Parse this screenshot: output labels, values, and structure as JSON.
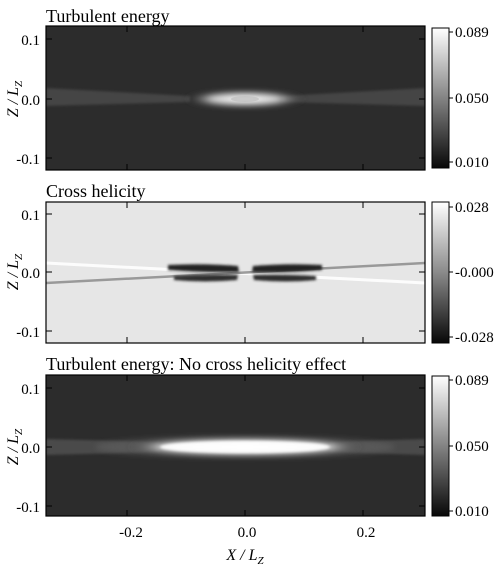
{
  "chart_data": [
    {
      "type": "heatmap",
      "title": "Turbulent energy",
      "ylabel_main": "Z / L",
      "ylabel_sub": "Z",
      "xlabel": "",
      "xlim": [
        -0.3,
        0.3
      ],
      "ylim": [
        -0.12,
        0.12
      ],
      "yticks": [
        0.1,
        0.0,
        -0.1
      ],
      "ytick_labels": [
        "0.1",
        "0.0",
        "-0.1"
      ],
      "colorscale": "grayscale (dark = low, white = high)",
      "colorbar": {
        "min": 0.01,
        "max": 0.089,
        "ticks": [
          0.089,
          0.05,
          0.01
        ],
        "tick_labels": [
          "0.089",
          "0.050",
          "0.010"
        ]
      },
      "features": [
        {
          "shape": "bright elongated core",
          "x_center": 0.0,
          "y_center": 0.0,
          "half_width_x": 0.1,
          "half_width_y": 0.015,
          "value": 0.089
        },
        {
          "shape": "faint thin wings",
          "x_range": [
            -0.3,
            0.3
          ],
          "y_center": 0.0,
          "value": 0.02
        }
      ]
    },
    {
      "type": "heatmap",
      "title": "Cross helicity",
      "ylabel_main": "Z / L",
      "ylabel_sub": "Z",
      "xlabel": "",
      "xlim": [
        -0.3,
        0.3
      ],
      "ylim": [
        -0.12,
        0.12
      ],
      "yticks": [
        0.1,
        0.0,
        -0.1
      ],
      "ytick_labels": [
        "0.1",
        "0.0",
        "-0.1"
      ],
      "colorscale": "grayscale (dark = negative, light = positive)",
      "colorbar": {
        "min": -0.028,
        "max": 0.028,
        "ticks": [
          0.028,
          0.0,
          -0.028
        ],
        "tick_labels": [
          "0.028",
          "-0.000",
          "-0.028"
        ]
      },
      "features": [
        {
          "shape": "antisymmetric dark lobes",
          "x_range": [
            -0.1,
            0.1
          ],
          "y_center": 0.0,
          "value": -0.028
        },
        {
          "shape": "light diagonal streak",
          "from": [
            -0.3,
            0.015
          ],
          "to": [
            0.3,
            -0.015
          ],
          "value": 0.02
        },
        {
          "shape": "dark diagonal streak",
          "from": [
            -0.3,
            -0.015
          ],
          "to": [
            0.3,
            0.015
          ],
          "value": -0.01
        }
      ]
    },
    {
      "type": "heatmap",
      "title": "Turbulent energy: No cross helicity effect",
      "ylabel_main": "Z / L",
      "ylabel_sub": "Z",
      "xlabel_main": "X / L",
      "xlabel_sub": "Z",
      "xlim": [
        -0.3,
        0.3
      ],
      "ylim": [
        -0.12,
        0.12
      ],
      "xticks": [
        -0.2,
        0.0,
        0.2
      ],
      "xtick_labels": [
        "-0.2",
        "0.0",
        "0.2"
      ],
      "yticks": [
        0.1,
        0.0,
        -0.1
      ],
      "ytick_labels": [
        "0.1",
        "0.0",
        "-0.1"
      ],
      "colorscale": "grayscale (dark = low, white = high)",
      "colorbar": {
        "min": 0.01,
        "max": 0.089,
        "ticks": [
          0.089,
          0.05,
          0.01
        ],
        "tick_labels": [
          "0.089",
          "0.050",
          "0.010"
        ]
      },
      "features": [
        {
          "shape": "broad bright core",
          "x_center": 0.0,
          "y_center": 0.0,
          "half_width_x": 0.19,
          "half_width_y": 0.02,
          "value": 0.089
        },
        {
          "shape": "faint thin wings",
          "x_range": [
            -0.3,
            0.3
          ],
          "y_center": 0.0,
          "value": 0.02
        }
      ]
    }
  ]
}
